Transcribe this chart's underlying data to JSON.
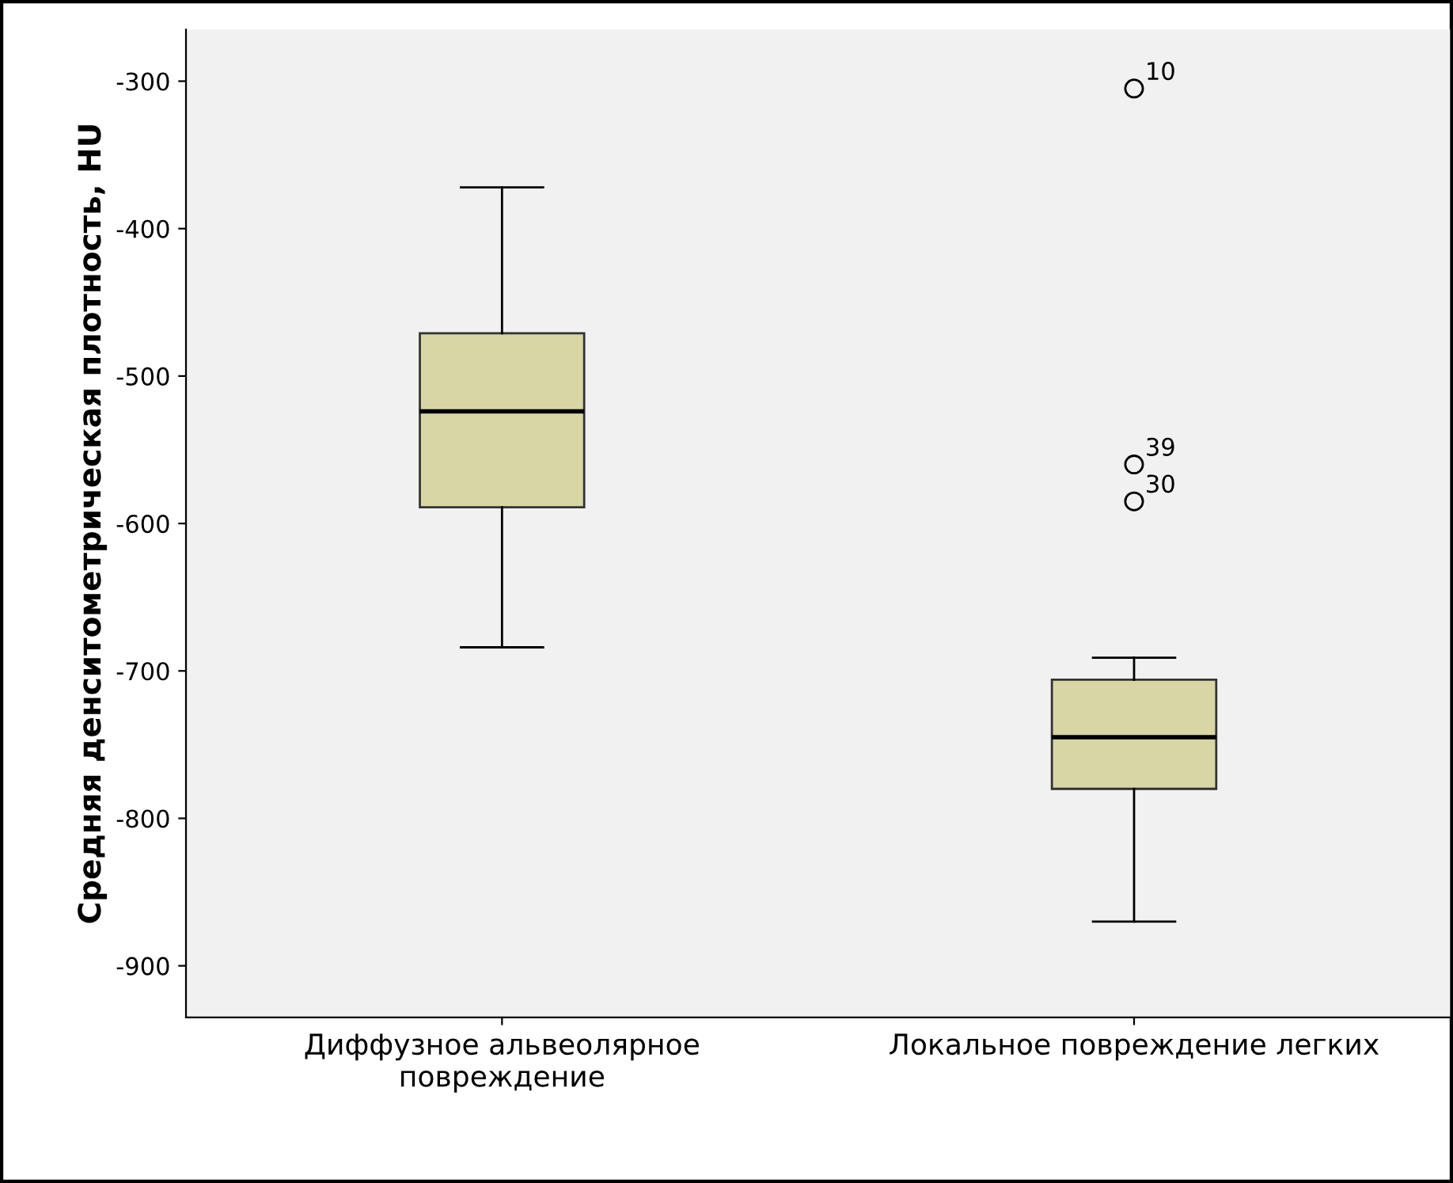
{
  "chart_data": {
    "type": "box",
    "ylabel": "Средняя денситометрическая плотность, HU",
    "categories": [
      "Диффузное альвеолярное\nповреждение",
      "Локальное повреждение легких"
    ],
    "boxes": [
      {
        "low": -684,
        "q1": -589,
        "median": -524,
        "q3": -471,
        "high": -372
      },
      {
        "low": -870,
        "q1": -780,
        "median": -745,
        "q3": -706,
        "high": -691,
        "outliers": [
          -305,
          -560,
          -585
        ]
      }
    ],
    "color": "#d9d6a5",
    "ylim": [
      -935,
      -265
    ],
    "yticks": [
      -300,
      -400,
      -500,
      -600,
      -700,
      -800,
      -900
    ],
    "annotations": [
      "10",
      "39",
      "30"
    ],
    "grid": false,
    "legend": false
  }
}
